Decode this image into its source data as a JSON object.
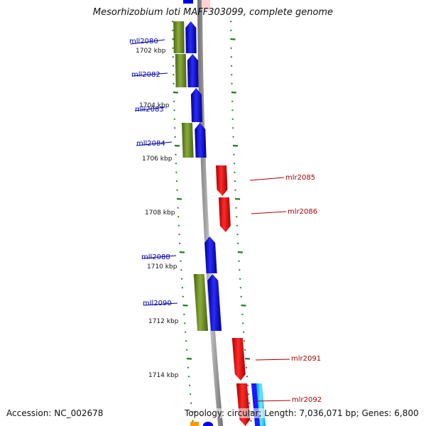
{
  "title": "Mesorhizobium loti MAFF303099, complete genome",
  "footer": {
    "accession": "Accession: NC_002678",
    "summary": "Topology: circular; Length: 7,036,071 bp; Genes: 6,800"
  },
  "colors": {
    "minus_strand_cds": "#0000ee",
    "plus_strand_cds": "#ee0000",
    "orthology": "#6b8e23",
    "backbone": "#888888",
    "scale_ticks": "#1f7a1f",
    "minus_label": "#0000aa",
    "plus_label": "#aa0000"
  },
  "ruler": [
    "1702 kbp",
    "1704 kbp",
    "1706 kbp",
    "1708 kbp",
    "1710 kbp",
    "1712 kbp",
    "1714 kbp"
  ],
  "genes": [
    {
      "name": "mll2080",
      "strand": "minus"
    },
    {
      "name": "mll2082",
      "strand": "minus"
    },
    {
      "name": "mll2083",
      "strand": "minus"
    },
    {
      "name": "mll2084",
      "strand": "minus"
    },
    {
      "name": "mlr2085",
      "strand": "plus"
    },
    {
      "name": "mlr2086",
      "strand": "plus"
    },
    {
      "name": "mll2088",
      "strand": "minus"
    },
    {
      "name": "mll2090",
      "strand": "minus"
    },
    {
      "name": "mlr2091",
      "strand": "plus"
    },
    {
      "name": "mlr2092",
      "strand": "plus"
    }
  ]
}
